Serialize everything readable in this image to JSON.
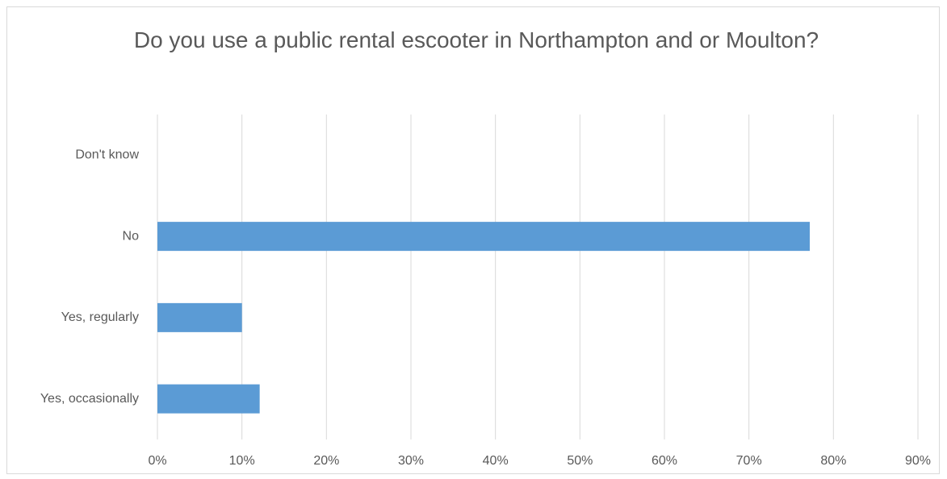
{
  "chart_data": {
    "type": "bar",
    "orientation": "horizontal",
    "title": "Do you use a public rental escooter in Northampton and or Moulton?",
    "categories": [
      "Don't know",
      "No",
      "Yes, regularly",
      "Yes, occasionally"
    ],
    "values": [
      0,
      77.2,
      10,
      12.1
    ],
    "color": "#5b9bd5",
    "xlim": [
      0,
      90
    ],
    "xticks": [
      {
        "value": 0,
        "label": "0%"
      },
      {
        "value": 10,
        "label": "10%"
      },
      {
        "value": 20,
        "label": "20%"
      },
      {
        "value": 30,
        "label": "30%"
      },
      {
        "value": 40,
        "label": "40%"
      },
      {
        "value": 50,
        "label": "50%"
      },
      {
        "value": 60,
        "label": "60%"
      },
      {
        "value": 70,
        "label": "70%"
      },
      {
        "value": 80,
        "label": "80%"
      },
      {
        "value": 90,
        "label": "90%"
      }
    ],
    "grid": true
  }
}
